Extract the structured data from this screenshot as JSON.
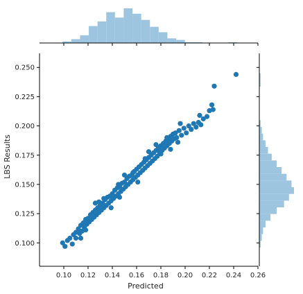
{
  "chart_data": {
    "type": "scatter",
    "title": "",
    "xlabel": "Predicted",
    "ylabel": "LBS Results",
    "xlim": [
      0.08,
      0.26
    ],
    "ylim": [
      0.08,
      0.262
    ],
    "xticks": [
      "0.10",
      "0.12",
      "0.14",
      "0.16",
      "0.18",
      "0.20",
      "0.22",
      "0.24",
      "0.26"
    ],
    "yticks": [
      "0.100",
      "0.125",
      "0.150",
      "0.175",
      "0.200",
      "0.225",
      "0.250"
    ],
    "grid": false,
    "colors": {
      "points": "#1f77b4",
      "hist": "#9ec5e0",
      "axes": "#000000"
    },
    "points": [
      [
        0.099,
        0.1
      ],
      [
        0.101,
        0.097
      ],
      [
        0.103,
        0.102
      ],
      [
        0.105,
        0.104
      ],
      [
        0.107,
        0.099
      ],
      [
        0.108,
        0.107
      ],
      [
        0.11,
        0.109
      ],
      [
        0.11,
        0.104
      ],
      [
        0.112,
        0.112
      ],
      [
        0.113,
        0.108
      ],
      [
        0.114,
        0.115
      ],
      [
        0.115,
        0.11
      ],
      [
        0.116,
        0.117
      ],
      [
        0.117,
        0.113
      ],
      [
        0.118,
        0.12
      ],
      [
        0.119,
        0.116
      ],
      [
        0.12,
        0.121
      ],
      [
        0.121,
        0.118
      ],
      [
        0.122,
        0.124
      ],
      [
        0.123,
        0.12
      ],
      [
        0.124,
        0.126
      ],
      [
        0.125,
        0.122
      ],
      [
        0.126,
        0.128
      ],
      [
        0.127,
        0.124
      ],
      [
        0.128,
        0.13
      ],
      [
        0.129,
        0.126
      ],
      [
        0.13,
        0.132
      ],
      [
        0.131,
        0.128
      ],
      [
        0.132,
        0.134
      ],
      [
        0.133,
        0.13
      ],
      [
        0.134,
        0.137
      ],
      [
        0.135,
        0.132
      ],
      [
        0.136,
        0.139
      ],
      [
        0.137,
        0.134
      ],
      [
        0.138,
        0.14
      ],
      [
        0.139,
        0.136
      ],
      [
        0.14,
        0.142
      ],
      [
        0.141,
        0.138
      ],
      [
        0.142,
        0.145
      ],
      [
        0.143,
        0.14
      ],
      [
        0.144,
        0.147
      ],
      [
        0.145,
        0.142
      ],
      [
        0.146,
        0.148
      ],
      [
        0.147,
        0.144
      ],
      [
        0.148,
        0.151
      ],
      [
        0.149,
        0.146
      ],
      [
        0.15,
        0.152
      ],
      [
        0.151,
        0.148
      ],
      [
        0.152,
        0.155
      ],
      [
        0.153,
        0.15
      ],
      [
        0.154,
        0.157
      ],
      [
        0.155,
        0.152
      ],
      [
        0.156,
        0.158
      ],
      [
        0.157,
        0.154
      ],
      [
        0.158,
        0.161
      ],
      [
        0.159,
        0.156
      ],
      [
        0.16,
        0.163
      ],
      [
        0.161,
        0.158
      ],
      [
        0.162,
        0.165
      ],
      [
        0.163,
        0.16
      ],
      [
        0.164,
        0.167
      ],
      [
        0.165,
        0.162
      ],
      [
        0.166,
        0.169
      ],
      [
        0.167,
        0.164
      ],
      [
        0.168,
        0.171
      ],
      [
        0.169,
        0.166
      ],
      [
        0.17,
        0.173
      ],
      [
        0.171,
        0.168
      ],
      [
        0.172,
        0.175
      ],
      [
        0.173,
        0.17
      ],
      [
        0.174,
        0.177
      ],
      [
        0.175,
        0.172
      ],
      [
        0.176,
        0.179
      ],
      [
        0.177,
        0.174
      ],
      [
        0.178,
        0.181
      ],
      [
        0.179,
        0.177
      ],
      [
        0.18,
        0.183
      ],
      [
        0.181,
        0.179
      ],
      [
        0.182,
        0.185
      ],
      [
        0.183,
        0.181
      ],
      [
        0.184,
        0.187
      ],
      [
        0.185,
        0.183
      ],
      [
        0.186,
        0.189
      ],
      [
        0.187,
        0.185
      ],
      [
        0.188,
        0.191
      ],
      [
        0.189,
        0.187
      ],
      [
        0.19,
        0.193
      ],
      [
        0.191,
        0.189
      ],
      [
        0.192,
        0.194
      ],
      [
        0.193,
        0.19
      ],
      [
        0.195,
        0.196
      ],
      [
        0.197,
        0.192
      ],
      [
        0.199,
        0.198
      ],
      [
        0.201,
        0.194
      ],
      [
        0.203,
        0.2
      ],
      [
        0.205,
        0.197
      ],
      [
        0.207,
        0.202
      ],
      [
        0.209,
        0.199
      ],
      [
        0.211,
        0.203
      ],
      [
        0.213,
        0.201
      ],
      [
        0.215,
        0.206
      ],
      [
        0.218,
        0.208
      ],
      [
        0.22,
        0.213
      ],
      [
        0.222,
        0.218
      ],
      [
        0.223,
        0.214
      ],
      [
        0.224,
        0.234
      ],
      [
        0.242,
        0.244
      ],
      [
        0.114,
        0.104
      ],
      [
        0.126,
        0.134
      ],
      [
        0.139,
        0.13
      ],
      [
        0.15,
        0.158
      ],
      [
        0.161,
        0.152
      ],
      [
        0.17,
        0.178
      ],
      [
        0.18,
        0.176
      ],
      [
        0.188,
        0.18
      ],
      [
        0.196,
        0.202
      ],
      [
        0.212,
        0.209
      ],
      [
        0.118,
        0.111
      ],
      [
        0.133,
        0.138
      ],
      [
        0.145,
        0.15
      ],
      [
        0.157,
        0.16
      ],
      [
        0.167,
        0.172
      ],
      [
        0.176,
        0.184
      ],
      [
        0.185,
        0.19
      ],
      [
        0.194,
        0.186
      ],
      [
        0.146,
        0.139
      ],
      [
        0.129,
        0.135
      ]
    ],
    "top_hist": {
      "range": [
        0.099,
        0.243
      ],
      "counts": [
        2,
        5,
        10,
        22,
        28,
        40,
        33,
        45,
        38,
        30,
        21,
        14,
        6,
        4,
        1,
        1,
        0,
        0,
        0,
        1
      ]
    },
    "right_hist": {
      "range": [
        0.096,
        0.245
      ],
      "counts": [
        1,
        2,
        3,
        5,
        9,
        14,
        20,
        24,
        28,
        26,
        22,
        18,
        14,
        10,
        7,
        5,
        3,
        2,
        1,
        0,
        0,
        0,
        0,
        0,
        1,
        1
      ]
    }
  }
}
